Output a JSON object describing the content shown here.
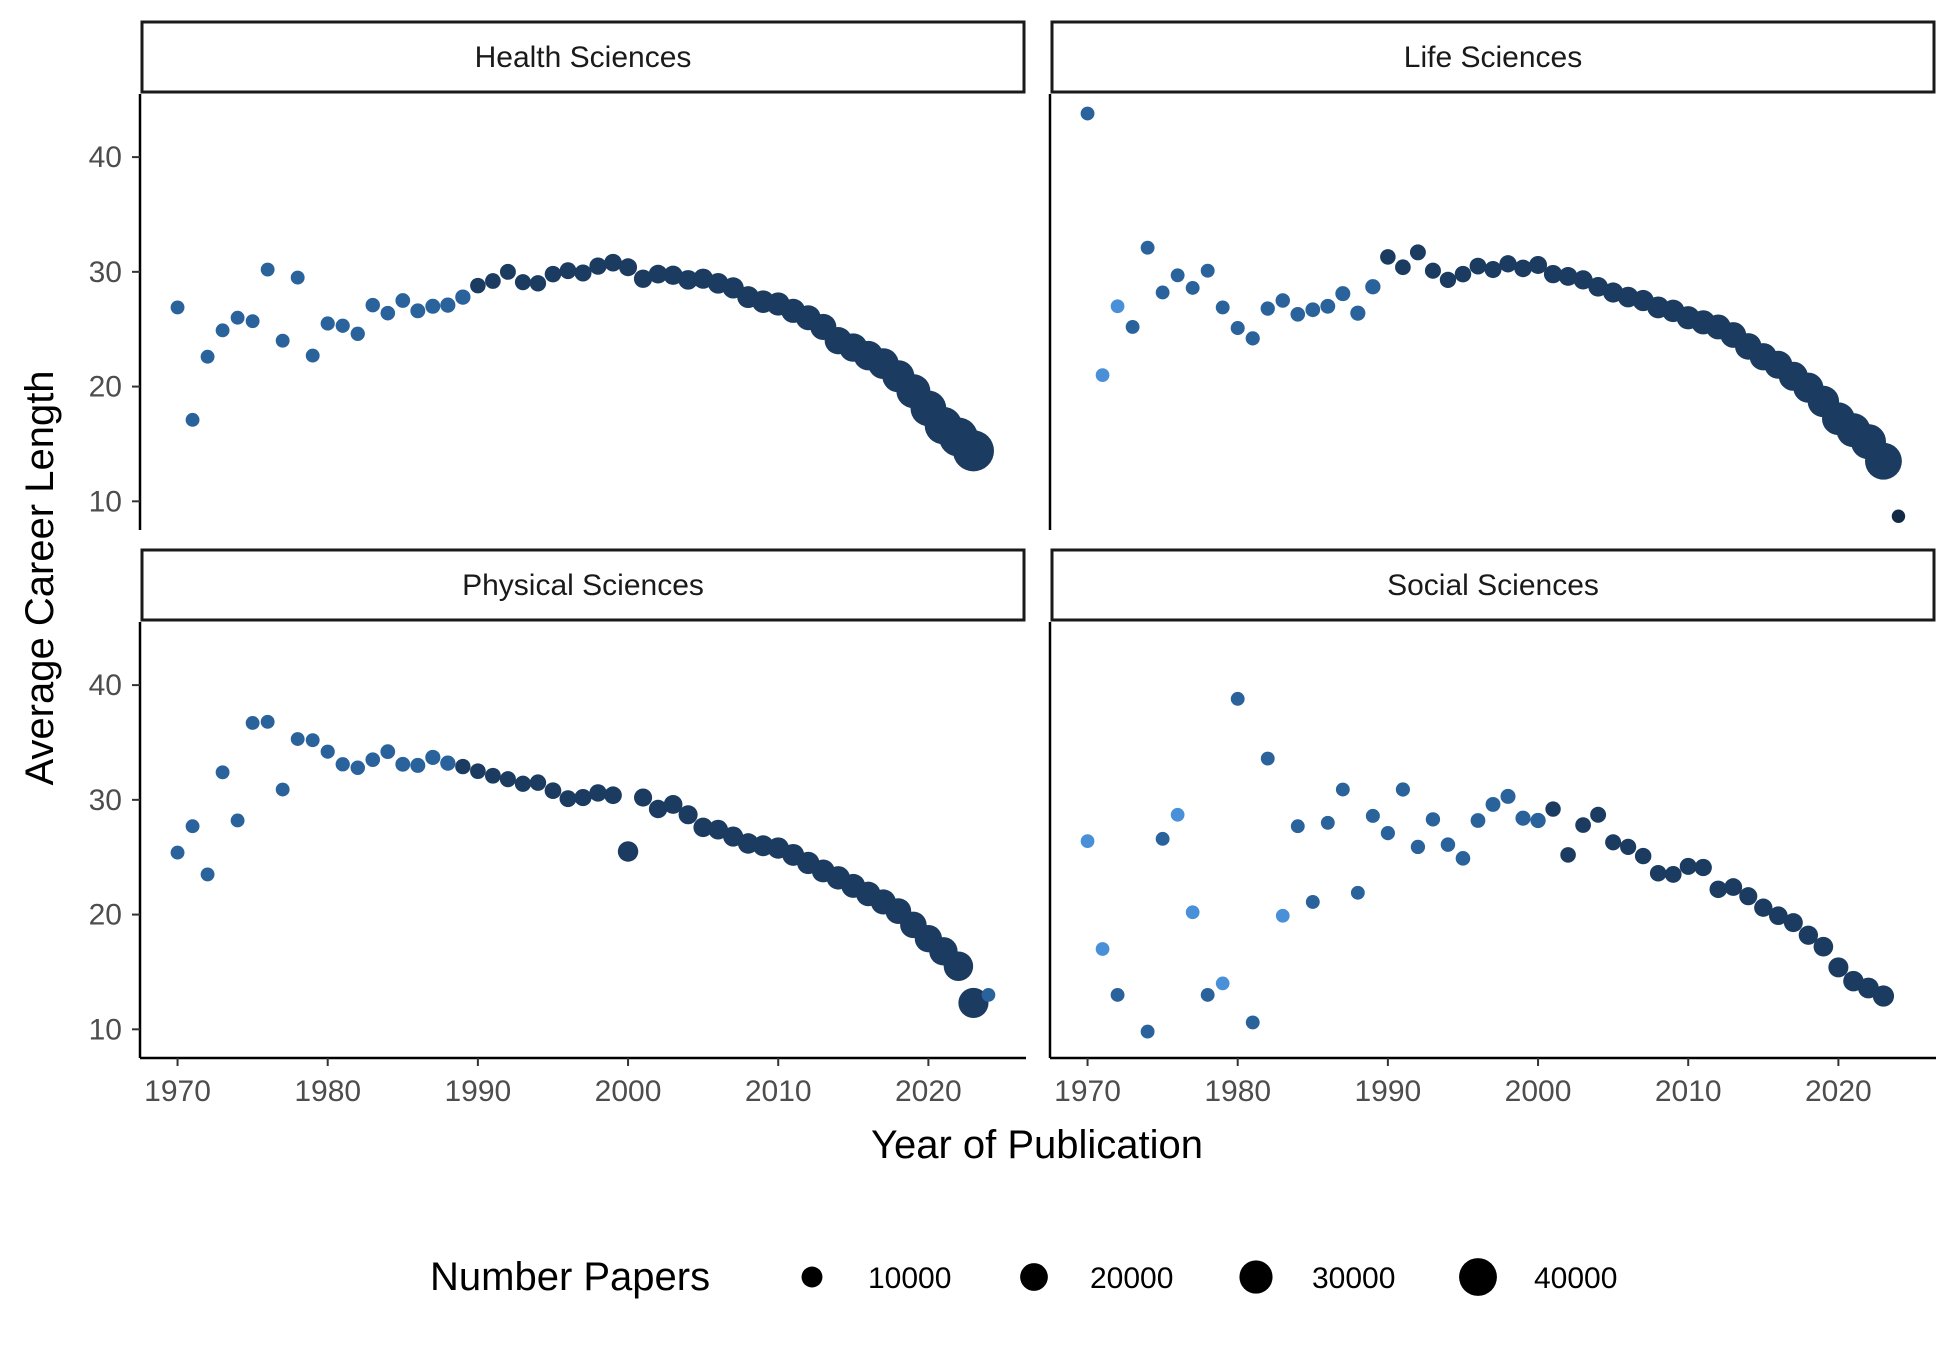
{
  "chart_data": {
    "type": "scatter",
    "xlabel": "Year of Publication",
    "ylabel": "Average Career Length",
    "xlim": [
      1967.5,
      2026.5
    ],
    "ylim": [
      7.5,
      45.5
    ],
    "x_ticks": [
      1970,
      1980,
      1990,
      2000,
      2010,
      2020
    ],
    "y_ticks": [
      10,
      20,
      30,
      40
    ],
    "size_legend": {
      "title": "Number Papers",
      "values": [
        10000,
        20000,
        30000,
        40000
      ],
      "labels": [
        "10000",
        "20000",
        "30000",
        "40000"
      ]
    },
    "colors": {
      "light": "#4a90d9",
      "mid": "#2a629b",
      "dark": "#1b3b60",
      "darkest": "#132a46"
    },
    "panels": [
      {
        "name": "Health Sciences",
        "points": [
          [
            1970,
            26.9,
            1500
          ],
          [
            1971,
            17.1,
            1500
          ],
          [
            1972,
            22.6,
            1500
          ],
          [
            1973,
            24.9,
            1500
          ],
          [
            1974,
            26.0,
            1500
          ],
          [
            1975,
            25.7,
            1500
          ],
          [
            1976,
            30.2,
            1500
          ],
          [
            1977,
            24.0,
            1500
          ],
          [
            1978,
            29.5,
            1500
          ],
          [
            1979,
            22.7,
            1500
          ],
          [
            1980,
            25.5,
            1700
          ],
          [
            1981,
            25.3,
            1700
          ],
          [
            1982,
            24.6,
            1800
          ],
          [
            1983,
            27.1,
            1900
          ],
          [
            1984,
            26.4,
            2000
          ],
          [
            1985,
            27.5,
            2100
          ],
          [
            1986,
            26.6,
            2200
          ],
          [
            1987,
            27.0,
            2300
          ],
          [
            1988,
            27.1,
            2400
          ],
          [
            1989,
            27.8,
            2500
          ],
          [
            1990,
            28.8,
            2700
          ],
          [
            1991,
            29.2,
            2800
          ],
          [
            1992,
            30.0,
            3000
          ],
          [
            1993,
            29.1,
            3100
          ],
          [
            1994,
            29.0,
            3300
          ],
          [
            1995,
            29.8,
            3500
          ],
          [
            1996,
            30.1,
            3700
          ],
          [
            1997,
            29.9,
            3900
          ],
          [
            1998,
            30.5,
            4100
          ],
          [
            1999,
            30.8,
            4400
          ],
          [
            2000,
            30.4,
            4700
          ],
          [
            2001,
            29.4,
            5000
          ],
          [
            2002,
            29.8,
            5400
          ],
          [
            2003,
            29.7,
            5800
          ],
          [
            2004,
            29.3,
            6200
          ],
          [
            2005,
            29.4,
            6700
          ],
          [
            2006,
            29.0,
            7200
          ],
          [
            2007,
            28.6,
            7800
          ],
          [
            2008,
            27.8,
            8500
          ],
          [
            2009,
            27.4,
            9200
          ],
          [
            2010,
            27.2,
            10000
          ],
          [
            2011,
            26.6,
            11000
          ],
          [
            2012,
            26.0,
            12000
          ],
          [
            2013,
            25.2,
            13500
          ],
          [
            2014,
            24.0,
            15000
          ],
          [
            2015,
            23.4,
            16500
          ],
          [
            2016,
            22.7,
            18000
          ],
          [
            2017,
            22.0,
            20000
          ],
          [
            2018,
            20.9,
            22000
          ],
          [
            2019,
            19.6,
            25000
          ],
          [
            2020,
            18.1,
            28000
          ],
          [
            2021,
            16.6,
            31000
          ],
          [
            2022,
            15.6,
            34000
          ],
          [
            2023,
            14.4,
            38000
          ]
        ]
      },
      {
        "name": "Life Sciences",
        "points": [
          [
            1970,
            43.8,
            1500
          ],
          [
            1971,
            21.0,
            1400
          ],
          [
            1972,
            27.0,
            1400
          ],
          [
            1973,
            25.2,
            1500
          ],
          [
            1974,
            32.1,
            1500
          ],
          [
            1975,
            28.2,
            1500
          ],
          [
            1976,
            29.7,
            1500
          ],
          [
            1977,
            28.6,
            1500
          ],
          [
            1978,
            30.1,
            1500
          ],
          [
            1979,
            26.9,
            1500
          ],
          [
            1980,
            25.1,
            1600
          ],
          [
            1981,
            24.2,
            1700
          ],
          [
            1982,
            26.8,
            1800
          ],
          [
            1983,
            27.5,
            1900
          ],
          [
            1984,
            26.3,
            2000
          ],
          [
            1985,
            26.7,
            2100
          ],
          [
            1986,
            27.0,
            2200
          ],
          [
            1987,
            28.1,
            2300
          ],
          [
            1988,
            26.4,
            2400
          ],
          [
            1989,
            28.7,
            2500
          ],
          [
            1990,
            31.3,
            2700
          ],
          [
            1991,
            30.4,
            2800
          ],
          [
            1992,
            31.7,
            3000
          ],
          [
            1993,
            30.1,
            3100
          ],
          [
            1994,
            29.3,
            3300
          ],
          [
            1995,
            29.8,
            3500
          ],
          [
            1996,
            30.5,
            3700
          ],
          [
            1997,
            30.2,
            3900
          ],
          [
            1998,
            30.7,
            4100
          ],
          [
            1999,
            30.3,
            4400
          ],
          [
            2000,
            30.6,
            4700
          ],
          [
            2001,
            29.8,
            5000
          ],
          [
            2002,
            29.6,
            5400
          ],
          [
            2003,
            29.3,
            5800
          ],
          [
            2004,
            28.7,
            6200
          ],
          [
            2005,
            28.2,
            6700
          ],
          [
            2006,
            27.8,
            7200
          ],
          [
            2007,
            27.5,
            7800
          ],
          [
            2008,
            26.9,
            8500
          ],
          [
            2009,
            26.6,
            9200
          ],
          [
            2010,
            26.0,
            10000
          ],
          [
            2011,
            25.6,
            11000
          ],
          [
            2012,
            25.2,
            12000
          ],
          [
            2013,
            24.5,
            13000
          ],
          [
            2014,
            23.5,
            14000
          ],
          [
            2015,
            22.6,
            15000
          ],
          [
            2016,
            21.9,
            16000
          ],
          [
            2017,
            20.9,
            17500
          ],
          [
            2018,
            19.9,
            19000
          ],
          [
            2019,
            18.7,
            21000
          ],
          [
            2020,
            17.2,
            23000
          ],
          [
            2021,
            16.2,
            25000
          ],
          [
            2022,
            15.2,
            27000
          ],
          [
            2023,
            13.5,
            30000
          ],
          [
            2024,
            8.7,
            1200
          ]
        ]
      },
      {
        "name": "Physical Sciences",
        "points": [
          [
            1970,
            25.4,
            1500
          ],
          [
            1971,
            27.7,
            1500
          ],
          [
            1972,
            23.5,
            1500
          ],
          [
            1973,
            32.4,
            1500
          ],
          [
            1974,
            28.2,
            1500
          ],
          [
            1975,
            36.7,
            1500
          ],
          [
            1976,
            36.8,
            1500
          ],
          [
            1977,
            30.9,
            1500
          ],
          [
            1978,
            35.3,
            1500
          ],
          [
            1979,
            35.2,
            1500
          ],
          [
            1980,
            34.2,
            1700
          ],
          [
            1981,
            33.1,
            1800
          ],
          [
            1982,
            32.8,
            1900
          ],
          [
            1983,
            33.5,
            2000
          ],
          [
            1984,
            34.2,
            2100
          ],
          [
            1985,
            33.1,
            2200
          ],
          [
            1986,
            33.0,
            2300
          ],
          [
            1987,
            33.7,
            2400
          ],
          [
            1988,
            33.2,
            2500
          ],
          [
            1989,
            32.9,
            2600
          ],
          [
            1990,
            32.5,
            2800
          ],
          [
            1991,
            32.1,
            2900
          ],
          [
            1992,
            31.8,
            3100
          ],
          [
            1993,
            31.4,
            3200
          ],
          [
            1994,
            31.5,
            3400
          ],
          [
            1995,
            30.8,
            3600
          ],
          [
            1996,
            30.1,
            3800
          ],
          [
            1997,
            30.2,
            4000
          ],
          [
            1998,
            30.6,
            4200
          ],
          [
            1999,
            30.4,
            4400
          ],
          [
            2000,
            25.5,
            7000
          ],
          [
            2001,
            30.2,
            4800
          ],
          [
            2002,
            29.2,
            5100
          ],
          [
            2003,
            29.6,
            5400
          ],
          [
            2004,
            28.7,
            5700
          ],
          [
            2005,
            27.6,
            6000
          ],
          [
            2006,
            27.4,
            6300
          ],
          [
            2007,
            26.8,
            6700
          ],
          [
            2008,
            26.2,
            7100
          ],
          [
            2009,
            26.0,
            7500
          ],
          [
            2010,
            25.8,
            8000
          ],
          [
            2011,
            25.2,
            8500
          ],
          [
            2012,
            24.5,
            9000
          ],
          [
            2013,
            23.8,
            9600
          ],
          [
            2014,
            23.2,
            10200
          ],
          [
            2015,
            22.5,
            10800
          ],
          [
            2016,
            21.8,
            11500
          ],
          [
            2017,
            21.1,
            12200
          ],
          [
            2018,
            20.3,
            13000
          ],
          [
            2019,
            19.1,
            14000
          ],
          [
            2020,
            17.9,
            15000
          ],
          [
            2021,
            16.8,
            16500
          ],
          [
            2022,
            15.5,
            18000
          ],
          [
            2023,
            12.3,
            19000
          ],
          [
            2024,
            13.0,
            1400
          ]
        ]
      },
      {
        "name": "Social Sciences",
        "points": [
          [
            1970,
            26.4,
            1400
          ],
          [
            1971,
            17.0,
            1400
          ],
          [
            1972,
            13.0,
            1500
          ],
          [
            1974,
            9.8,
            1500
          ],
          [
            1975,
            26.6,
            1500
          ],
          [
            1976,
            28.7,
            1400
          ],
          [
            1977,
            20.2,
            1400
          ],
          [
            1978,
            13.0,
            1500
          ],
          [
            1979,
            14.0,
            1400
          ],
          [
            1980,
            38.8,
            1500
          ],
          [
            1981,
            10.6,
            1500
          ],
          [
            1982,
            33.6,
            1500
          ],
          [
            1983,
            19.9,
            1400
          ],
          [
            1984,
            27.7,
            1500
          ],
          [
            1985,
            21.1,
            1500
          ],
          [
            1986,
            28.0,
            1500
          ],
          [
            1987,
            30.9,
            1500
          ],
          [
            1988,
            21.9,
            1500
          ],
          [
            1989,
            28.6,
            1600
          ],
          [
            1990,
            27.1,
            1700
          ],
          [
            1991,
            30.9,
            1700
          ],
          [
            1992,
            25.9,
            1800
          ],
          [
            1993,
            28.3,
            1800
          ],
          [
            1994,
            26.1,
            1900
          ],
          [
            1995,
            24.9,
            2000
          ],
          [
            1996,
            28.2,
            2100
          ],
          [
            1997,
            29.6,
            2200
          ],
          [
            1998,
            30.3,
            2300
          ],
          [
            1999,
            28.4,
            2400
          ],
          [
            2000,
            28.2,
            2500
          ],
          [
            2001,
            29.2,
            2600
          ],
          [
            2002,
            25.2,
            2700
          ],
          [
            2003,
            27.8,
            2800
          ],
          [
            2004,
            28.7,
            3000
          ],
          [
            2005,
            26.3,
            3100
          ],
          [
            2006,
            25.9,
            3200
          ],
          [
            2007,
            25.1,
            3400
          ],
          [
            2008,
            23.6,
            3500
          ],
          [
            2009,
            23.5,
            3700
          ],
          [
            2010,
            24.2,
            3900
          ],
          [
            2011,
            24.1,
            4100
          ],
          [
            2012,
            22.2,
            4300
          ],
          [
            2013,
            22.4,
            4500
          ],
          [
            2014,
            21.6,
            4800
          ],
          [
            2015,
            20.6,
            5000
          ],
          [
            2016,
            19.9,
            5300
          ],
          [
            2017,
            19.3,
            5600
          ],
          [
            2018,
            18.2,
            5900
          ],
          [
            2019,
            17.2,
            6200
          ],
          [
            2020,
            15.4,
            6600
          ],
          [
            2021,
            14.2,
            7000
          ],
          [
            2022,
            13.6,
            7400
          ],
          [
            2023,
            12.9,
            7800
          ]
        ]
      }
    ]
  }
}
